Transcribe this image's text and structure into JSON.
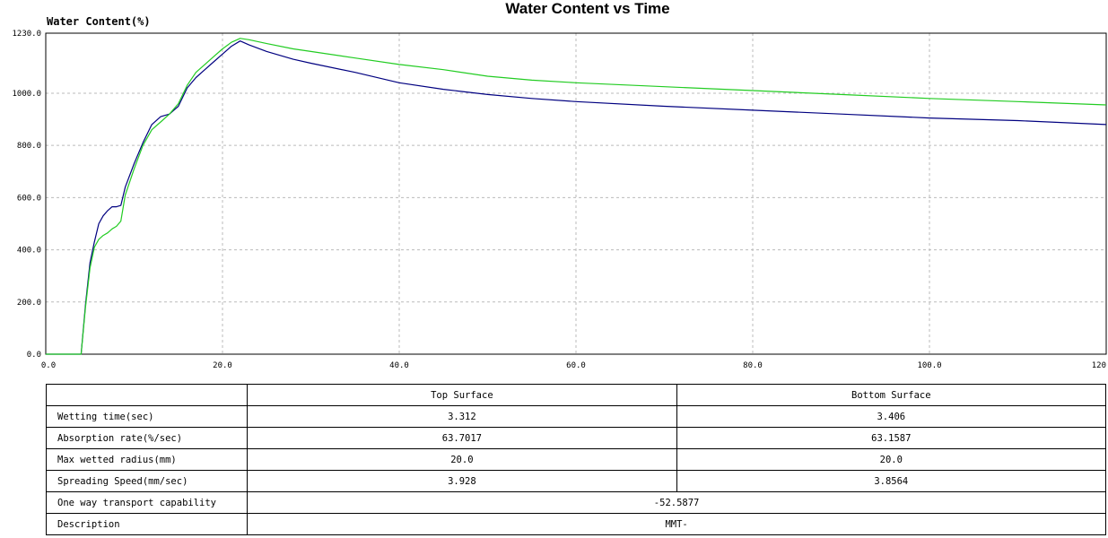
{
  "chart_data": {
    "type": "line",
    "title": "Water Content vs Time",
    "ylabel": "Water Content(%)",
    "xlabel": "",
    "xlim": [
      0,
      120
    ],
    "ylim": [
      0,
      1230
    ],
    "x_ticks": [
      "0.0",
      "20.0",
      "40.0",
      "60.0",
      "80.0",
      "100.0",
      "120"
    ],
    "y_ticks": [
      "0.0",
      "200.0",
      "400.0",
      "600.0",
      "800.0",
      "1000.0",
      "1230.0"
    ],
    "grid": true,
    "series": [
      {
        "color": "#000080",
        "points": [
          [
            0,
            0
          ],
          [
            4,
            0
          ],
          [
            4.5,
            190
          ],
          [
            5,
            350
          ],
          [
            5.5,
            430
          ],
          [
            6,
            500
          ],
          [
            6.5,
            530
          ],
          [
            7,
            550
          ],
          [
            7.5,
            565
          ],
          [
            8,
            565
          ],
          [
            8.5,
            570
          ],
          [
            9,
            640
          ],
          [
            10,
            730
          ],
          [
            11,
            810
          ],
          [
            12,
            880
          ],
          [
            13,
            910
          ],
          [
            14,
            920
          ],
          [
            15,
            950
          ],
          [
            16,
            1020
          ],
          [
            17,
            1060
          ],
          [
            18,
            1090
          ],
          [
            19,
            1120
          ],
          [
            20,
            1150
          ],
          [
            21,
            1180
          ],
          [
            22,
            1200
          ],
          [
            23,
            1185
          ],
          [
            25,
            1160
          ],
          [
            28,
            1130
          ],
          [
            30,
            1115
          ],
          [
            35,
            1080
          ],
          [
            40,
            1040
          ],
          [
            45,
            1015
          ],
          [
            50,
            995
          ],
          [
            55,
            980
          ],
          [
            60,
            968
          ],
          [
            70,
            950
          ],
          [
            80,
            935
          ],
          [
            90,
            920
          ],
          [
            100,
            905
          ],
          [
            110,
            895
          ],
          [
            120,
            880
          ]
        ]
      },
      {
        "color": "#22cc22",
        "points": [
          [
            0,
            0
          ],
          [
            4,
            0
          ],
          [
            4.5,
            180
          ],
          [
            5,
            330
          ],
          [
            5.5,
            410
          ],
          [
            6,
            440
          ],
          [
            6.5,
            455
          ],
          [
            7,
            465
          ],
          [
            7.5,
            480
          ],
          [
            8,
            490
          ],
          [
            8.5,
            510
          ],
          [
            9,
            610
          ],
          [
            10,
            710
          ],
          [
            11,
            800
          ],
          [
            12,
            860
          ],
          [
            13,
            890
          ],
          [
            14,
            920
          ],
          [
            15,
            960
          ],
          [
            16,
            1030
          ],
          [
            17,
            1080
          ],
          [
            18,
            1110
          ],
          [
            19,
            1140
          ],
          [
            20,
            1170
          ],
          [
            21,
            1195
          ],
          [
            22,
            1210
          ],
          [
            23,
            1205
          ],
          [
            25,
            1190
          ],
          [
            28,
            1170
          ],
          [
            30,
            1160
          ],
          [
            35,
            1135
          ],
          [
            40,
            1110
          ],
          [
            45,
            1090
          ],
          [
            50,
            1065
          ],
          [
            55,
            1050
          ],
          [
            60,
            1040
          ],
          [
            70,
            1025
          ],
          [
            80,
            1010
          ],
          [
            90,
            995
          ],
          [
            100,
            980
          ],
          [
            110,
            968
          ],
          [
            120,
            955
          ]
        ]
      }
    ]
  },
  "table": {
    "headers": [
      "",
      "Top Surface",
      "Bottom Surface"
    ],
    "rows": [
      {
        "label": "Wetting time(sec)",
        "top": "3.312",
        "bottom": "3.406"
      },
      {
        "label": "Absorption rate(%/sec)",
        "top": "63.7017",
        "bottom": "63.1587"
      },
      {
        "label": "Max wetted radius(mm)",
        "top": "20.0",
        "bottom": "20.0"
      },
      {
        "label": "Spreading Speed(mm/sec)",
        "top": "3.928",
        "bottom": "3.8564"
      }
    ],
    "one_way": {
      "label": "One way transport capability",
      "value": "-52.5877"
    },
    "description": {
      "label": "Description",
      "value": "MMT-"
    }
  }
}
